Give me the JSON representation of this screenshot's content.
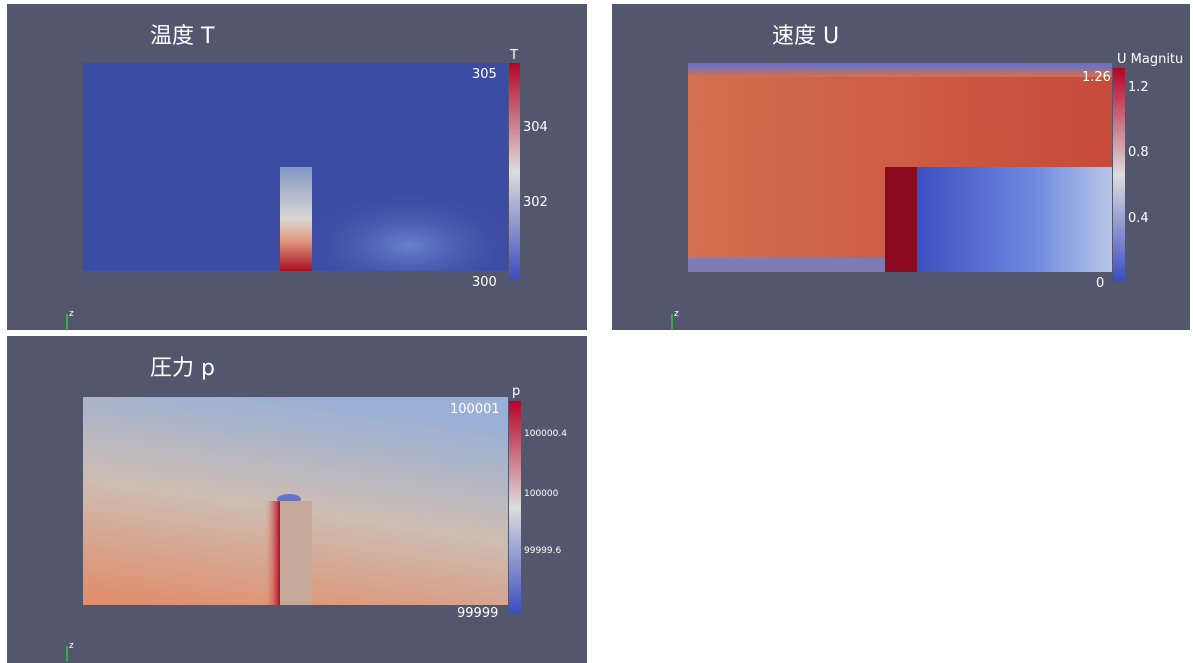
{
  "panels": [
    {
      "title": "温度 T",
      "bar_title": "T",
      "bar_max": "305",
      "bar_min": "300",
      "ticks": [
        "304",
        "302"
      ],
      "axis": "z"
    },
    {
      "title": "速度 U",
      "bar_title": "U Magnitu",
      "bar_max": "1.26",
      "bar_min": "0",
      "ticks": [
        "1.2",
        "0.8",
        "0.4"
      ],
      "axis": "z"
    },
    {
      "title": "圧力 p",
      "bar_title": "p",
      "bar_max": "100001",
      "bar_min": "99999",
      "ticks": [
        "100000.4",
        "100000",
        "99999.6"
      ],
      "axis": "z"
    }
  ]
}
